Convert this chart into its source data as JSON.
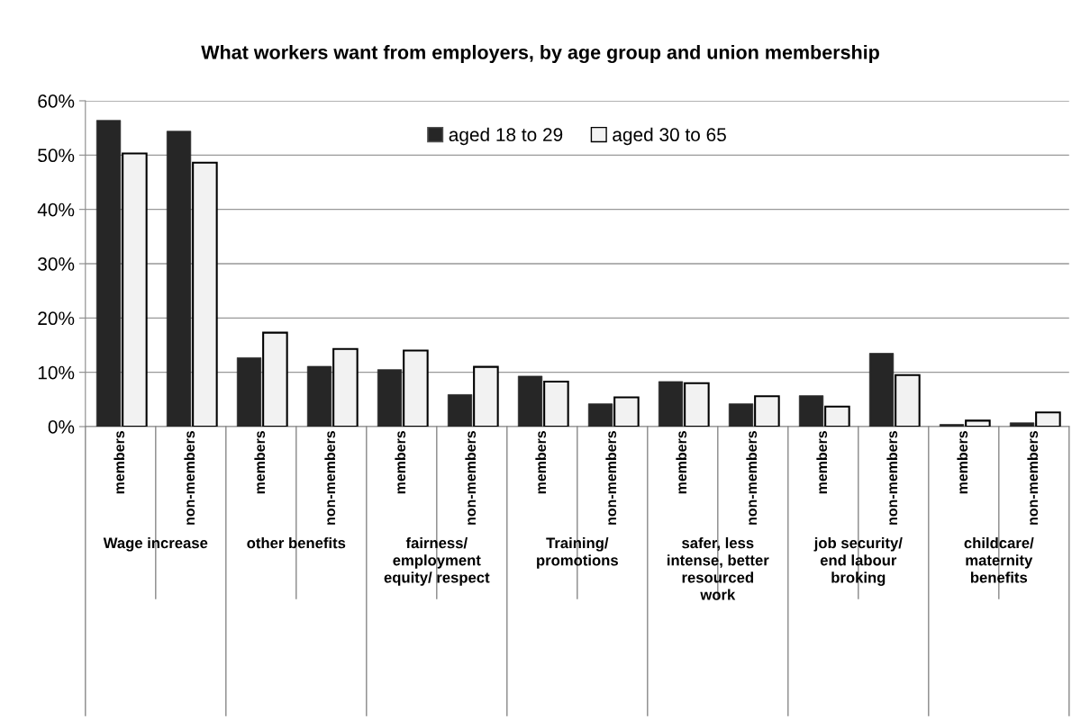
{
  "chart_data": {
    "type": "bar",
    "title": "What workers want from employers, by age group and union membership",
    "categories": [
      "members",
      "non-members",
      "members",
      "non-members",
      "members",
      "non-members",
      "members",
      "non-members",
      "members",
      "non-members",
      "members",
      "non-members",
      "members",
      "non-members"
    ],
    "series": [
      {
        "name": "aged 18 to 29",
        "color": "#262626",
        "values": [
          56.4,
          54.4,
          12.7,
          11.1,
          10.5,
          5.9,
          9.3,
          4.2,
          8.3,
          4.2,
          5.7,
          13.5,
          0.4,
          0.7
        ]
      },
      {
        "name": "aged 30 to 65",
        "color": "#f2f2f2",
        "values": [
          50.3,
          48.6,
          17.3,
          14.3,
          14.0,
          11.0,
          8.3,
          5.4,
          8.0,
          5.6,
          3.7,
          9.5,
          1.1,
          2.6
        ]
      }
    ],
    "annotations": [
      "Wage increase",
      "other benefits",
      "fairness/\nemployment\nequity/ respect",
      "Training/\npromotions",
      "safer, less\nintense, better\nresourced\nwork",
      "job security/\nend labour\nbroking",
      "childcare/\nmaternity\nbenefits"
    ],
    "ylim": [
      0,
      60
    ],
    "yticks": [
      {
        "value": 0,
        "label": "0%"
      },
      {
        "value": 10,
        "label": "10%"
      },
      {
        "value": 20,
        "label": "20%"
      },
      {
        "value": 30,
        "label": "30%"
      },
      {
        "value": 40,
        "label": "40%"
      },
      {
        "value": 50,
        "label": "50%"
      },
      {
        "value": 60,
        "label": "60%"
      }
    ],
    "grid": "y",
    "legend": "top"
  }
}
